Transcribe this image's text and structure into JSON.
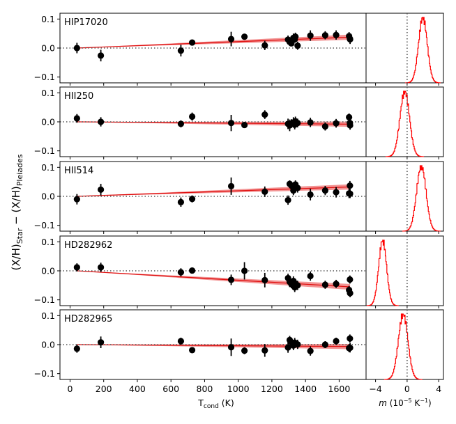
{
  "chart_data": {
    "type": "scatter",
    "ylabel_parts": {
      "a": "(X/H)",
      "a_sub": "Star",
      "sep": " − ",
      "b": "(X/H)",
      "b_sub": "Pleiades"
    },
    "xlabel_parts": {
      "main": "T",
      "sub": "cond",
      "unit": " (K)"
    },
    "hist_xlabel_parts": {
      "m": "m",
      "unit": " (10",
      "exp": "−5",
      "unit2": " K",
      "exp2": "−1",
      "close": ")"
    },
    "xlim": [
      -60,
      1760
    ],
    "ylim": [
      -0.12,
      0.12
    ],
    "xticks": [
      0,
      200,
      400,
      600,
      800,
      1000,
      1200,
      1400,
      1600
    ],
    "yticks": [
      0.1,
      0.0,
      -0.1
    ],
    "ytick_labels": [
      "0.1",
      "0.0",
      "−0.1"
    ],
    "hist_xlim": [
      -5.2,
      4.6
    ],
    "hist_xticks": [
      -4,
      0,
      4
    ],
    "hist_xtick_labels": [
      "−4",
      "0",
      "4"
    ],
    "tcond": [
      41,
      183,
      659,
      726,
      958,
      1037,
      1158,
      1296,
      1306,
      1316,
      1328,
      1336,
      1340,
      1353,
      1429,
      1517,
      1582,
      1659,
      1664,
      1665
    ],
    "panels": [
      {
        "name": "HIP17020",
        "y": [
          0.0,
          -0.026,
          -0.009,
          0.019,
          0.031,
          0.039,
          0.009,
          0.029,
          0.021,
          0.016,
          0.035,
          0.03,
          0.039,
          0.008,
          0.043,
          0.044,
          0.045,
          0.041,
          0.032,
          0.03
        ],
        "err": [
          0.018,
          0.02,
          0.02,
          0.01,
          0.025,
          0.01,
          0.016,
          0.014,
          0.012,
          0.01,
          0.015,
          0.012,
          0.014,
          0.014,
          0.018,
          0.014,
          0.016,
          0.014,
          0.012,
          0.016
        ],
        "fit_intercept": 0.0,
        "fit_slope_per_K": 2.3e-05,
        "band_halfwidth_at_end": 0.009,
        "hist_center": 2.0,
        "hist_width": 0.55
      },
      {
        "name": "HII250",
        "y": [
          0.012,
          0.0,
          -0.007,
          0.018,
          -0.004,
          -0.011,
          0.025,
          -0.007,
          -0.012,
          -0.006,
          -0.002,
          -0.01,
          0.002,
          -0.004,
          -0.002,
          -0.016,
          -0.005,
          0.016,
          -0.004,
          -0.012
        ],
        "err": [
          0.015,
          0.016,
          0.012,
          0.014,
          0.028,
          0.01,
          0.015,
          0.018,
          0.02,
          0.015,
          0.018,
          0.016,
          0.016,
          0.015,
          0.016,
          0.014,
          0.015,
          0.013,
          0.014,
          0.015
        ],
        "fit_intercept": 0.0,
        "fit_slope_per_K": -5e-06,
        "band_halfwidth_at_end": 0.009,
        "hist_center": -0.3,
        "hist_width": 0.6
      },
      {
        "name": "HII514",
        "y": [
          -0.01,
          0.023,
          -0.02,
          -0.009,
          0.035,
          null,
          0.016,
          -0.013,
          0.043,
          0.037,
          0.02,
          0.034,
          0.041,
          0.029,
          0.006,
          0.02,
          0.014,
          0.01,
          0.037,
          0.009
        ],
        "err": [
          0.018,
          0.02,
          0.016,
          0.012,
          0.03,
          null,
          0.018,
          0.016,
          0.012,
          0.014,
          0.016,
          0.016,
          0.014,
          0.016,
          0.02,
          0.016,
          0.018,
          0.016,
          0.016,
          0.015
        ],
        "fit_intercept": 0.0,
        "fit_slope_per_K": 2e-05,
        "band_halfwidth_at_end": 0.009,
        "hist_center": 1.8,
        "hist_width": 0.6
      },
      {
        "name": "HD282962",
        "y": [
          0.012,
          0.012,
          -0.005,
          0.001,
          -0.031,
          0.0,
          -0.032,
          -0.025,
          -0.038,
          -0.046,
          -0.035,
          -0.057,
          -0.044,
          -0.05,
          -0.018,
          -0.048,
          -0.045,
          -0.066,
          -0.03,
          -0.077
        ],
        "err": [
          0.014,
          0.016,
          0.014,
          0.008,
          0.018,
          0.03,
          0.025,
          0.015,
          0.018,
          0.014,
          0.016,
          0.016,
          0.016,
          0.016,
          0.016,
          0.014,
          0.014,
          0.014,
          0.014,
          0.014
        ],
        "fit_intercept": 0.0,
        "fit_slope_per_K": -3.4e-05,
        "band_halfwidth_at_end": 0.01,
        "hist_center": -3.1,
        "hist_width": 0.5
      },
      {
        "name": "HD282965",
        "y": [
          -0.014,
          0.008,
          0.012,
          -0.019,
          -0.009,
          -0.021,
          -0.02,
          -0.01,
          0.016,
          0.008,
          -0.003,
          0.007,
          0.003,
          0.001,
          -0.022,
          0.0,
          0.012,
          -0.012,
          0.021,
          -0.011
        ],
        "err": [
          0.014,
          0.02,
          0.012,
          0.01,
          0.03,
          0.012,
          0.022,
          0.018,
          0.014,
          0.016,
          0.016,
          0.016,
          0.014,
          0.016,
          0.016,
          0.012,
          0.012,
          0.014,
          0.014,
          0.016
        ],
        "fit_intercept": 0.0,
        "fit_slope_per_K": -4e-06,
        "band_halfwidth_at_end": 0.009,
        "hist_center": -0.5,
        "hist_width": 0.6
      }
    ]
  }
}
